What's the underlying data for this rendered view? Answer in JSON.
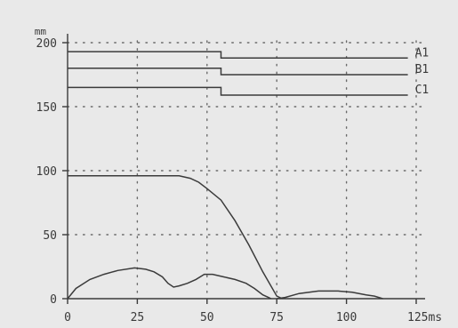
{
  "chart_data": {
    "type": "line",
    "xlabel": "",
    "ylabel": "",
    "x_unit": "ms",
    "y_unit": "mm",
    "xlim": [
      0,
      125
    ],
    "ylim": [
      0,
      200
    ],
    "x_ticks": [
      0,
      25,
      50,
      75,
      100,
      125
    ],
    "x_tick_labels": [
      "0",
      "25",
      "50",
      "75",
      "100",
      "125ms"
    ],
    "y_ticks": [
      0,
      50,
      100,
      150,
      200
    ],
    "y_tick_labels": [
      "0",
      "50",
      "100",
      "150",
      "200"
    ],
    "y_unit_label": "mm",
    "grid": true,
    "series": [
      {
        "name": "A1",
        "x": [
          0,
          55,
          55,
          122
        ],
        "y": [
          193,
          193,
          188,
          188
        ]
      },
      {
        "name": "B1",
        "x": [
          0,
          55,
          55,
          122
        ],
        "y": [
          180,
          180,
          175,
          175
        ]
      },
      {
        "name": "C1",
        "x": [
          0,
          55,
          55,
          122
        ],
        "y": [
          165,
          165,
          159,
          159
        ]
      },
      {
        "name": "",
        "x": [
          0,
          10,
          20,
          37,
          40,
          44,
          47,
          50,
          55,
          60,
          65,
          70,
          75,
          77
        ],
        "y": [
          96,
          96,
          96,
          96,
          96,
          94,
          91,
          86,
          77,
          61,
          42,
          21,
          2,
          0
        ]
      },
      {
        "name": "",
        "x": [
          0,
          3,
          8,
          13,
          18,
          24,
          28,
          31,
          34,
          36,
          38,
          40,
          43,
          46,
          49,
          52,
          56,
          60,
          64,
          67,
          70,
          72,
          73
        ],
        "y": [
          0,
          8,
          15,
          19,
          22,
          24,
          23,
          21,
          17,
          12,
          9,
          10,
          12,
          15,
          19,
          19,
          17,
          15,
          12,
          8,
          3,
          1,
          0
        ]
      },
      {
        "name": "",
        "x": [
          75,
          78,
          83,
          90,
          97,
          102,
          107,
          110,
          113
        ],
        "y": [
          0,
          1,
          4,
          6,
          6,
          5,
          3,
          2,
          0
        ]
      }
    ]
  }
}
